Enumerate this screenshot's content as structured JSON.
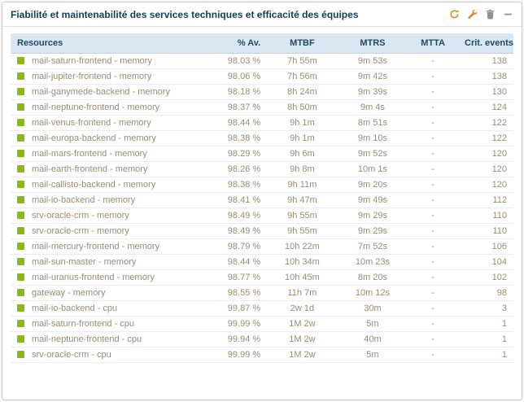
{
  "header": {
    "title": "Fiabilité et maintenabilité des services techniques et efficacité des équipes",
    "icons": [
      "refresh-icon",
      "wrench-icon",
      "trash-icon",
      "collapse-icon"
    ]
  },
  "colors": {
    "status_ok": "#88b917",
    "header_bg": "#d9e7f3",
    "header_text": "#1d4c66",
    "cell_text": "#9b8b72",
    "title_text": "#123d55"
  },
  "table": {
    "columns": [
      {
        "key": "resource",
        "label": "Resources",
        "align": "left"
      },
      {
        "key": "availability",
        "label": "% Av.",
        "align": "right"
      },
      {
        "key": "mtbf",
        "label": "MTBF",
        "align": "center"
      },
      {
        "key": "mtrs",
        "label": "MTRS",
        "align": "center"
      },
      {
        "key": "mtta",
        "label": "MTTA",
        "align": "center"
      },
      {
        "key": "crit_events",
        "label": "Crit. events",
        "align": "right"
      }
    ],
    "rows": [
      {
        "status": "ok",
        "resource": "mail-saturn-frontend - memory",
        "availability": "98.03 %",
        "mtbf": "7h 55m",
        "mtrs": "9m 53s",
        "mtta": "-",
        "crit_events": "138"
      },
      {
        "status": "ok",
        "resource": "mail-jupiter-frontend - memory",
        "availability": "98.06 %",
        "mtbf": "7h 56m",
        "mtrs": "9m 42s",
        "mtta": "-",
        "crit_events": "138"
      },
      {
        "status": "ok",
        "resource": "mail-ganymede-backend - memory",
        "availability": "98.18 %",
        "mtbf": "8h 24m",
        "mtrs": "9m 39s",
        "mtta": "-",
        "crit_events": "130"
      },
      {
        "status": "ok",
        "resource": "mail-neptune-frontend - memory",
        "availability": "98.37 %",
        "mtbf": "8h 50m",
        "mtrs": "9m 4s",
        "mtta": "-",
        "crit_events": "124"
      },
      {
        "status": "ok",
        "resource": "mail-venus-frontend - memory",
        "availability": "98.44 %",
        "mtbf": "9h 1m",
        "mtrs": "8m 51s",
        "mtta": "-",
        "crit_events": "122"
      },
      {
        "status": "ok",
        "resource": "mail-europa-backend - memory",
        "availability": "98.38 %",
        "mtbf": "9h 1m",
        "mtrs": "9m 10s",
        "mtta": "-",
        "crit_events": "122"
      },
      {
        "status": "ok",
        "resource": "mail-mars-frontend - memory",
        "availability": "98.29 %",
        "mtbf": "9h 6m",
        "mtrs": "9m 52s",
        "mtta": "-",
        "crit_events": "120"
      },
      {
        "status": "ok",
        "resource": "mail-earth-frontend - memory",
        "availability": "98.26 %",
        "mtbf": "9h 8m",
        "mtrs": "10m 1s",
        "mtta": "-",
        "crit_events": "120"
      },
      {
        "status": "ok",
        "resource": "mail-callisto-backend - memory",
        "availability": "98.38 %",
        "mtbf": "9h 11m",
        "mtrs": "9m 20s",
        "mtta": "-",
        "crit_events": "120"
      },
      {
        "status": "ok",
        "resource": "mail-io-backend - memory",
        "availability": "98.41 %",
        "mtbf": "9h 47m",
        "mtrs": "9m 49s",
        "mtta": "-",
        "crit_events": "112"
      },
      {
        "status": "ok",
        "resource": "srv-oracle-crm - memory",
        "availability": "98.49 %",
        "mtbf": "9h 55m",
        "mtrs": "9m 29s",
        "mtta": "-",
        "crit_events": "110"
      },
      {
        "status": "ok",
        "resource": "srv-oracle-crm - memory",
        "availability": "98.49 %",
        "mtbf": "9h 55m",
        "mtrs": "9m 29s",
        "mtta": "-",
        "crit_events": "110"
      },
      {
        "status": "ok",
        "resource": "mail-mercury-frontend - memory",
        "availability": "98.79 %",
        "mtbf": "10h 22m",
        "mtrs": "7m 52s",
        "mtta": "-",
        "crit_events": "106"
      },
      {
        "status": "ok",
        "resource": "mail-sun-master - memory",
        "availability": "98.44 %",
        "mtbf": "10h 34m",
        "mtrs": "10m 23s",
        "mtta": "-",
        "crit_events": "104"
      },
      {
        "status": "ok",
        "resource": "mail-uranus-frontend - memory",
        "availability": "98.77 %",
        "mtbf": "10h 45m",
        "mtrs": "8m 20s",
        "mtta": "-",
        "crit_events": "102"
      },
      {
        "status": "ok",
        "resource": "gateway - memory",
        "availability": "98.55 %",
        "mtbf": "11h 7m",
        "mtrs": "10m 12s",
        "mtta": "-",
        "crit_events": "98"
      },
      {
        "status": "ok",
        "resource": "mail-io-backend - cpu",
        "availability": "99.87 %",
        "mtbf": "2w 1d",
        "mtrs": "30m",
        "mtta": "-",
        "crit_events": "3"
      },
      {
        "status": "ok",
        "resource": "mail-saturn-frontend - cpu",
        "availability": "99.99 %",
        "mtbf": "1M 2w",
        "mtrs": "5m",
        "mtta": "-",
        "crit_events": "1"
      },
      {
        "status": "ok",
        "resource": "mail-neptune-frontend - cpu",
        "availability": "99.94 %",
        "mtbf": "1M 2w",
        "mtrs": "40m",
        "mtta": "-",
        "crit_events": "1"
      },
      {
        "status": "ok",
        "resource": "srv-oracle-crm - cpu",
        "availability": "99.99 %",
        "mtbf": "1M 2w",
        "mtrs": "5m",
        "mtta": "-",
        "crit_events": "1"
      }
    ]
  }
}
